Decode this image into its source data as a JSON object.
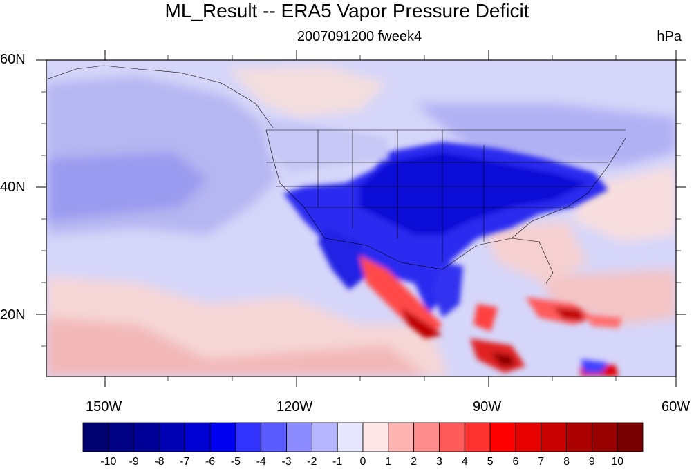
{
  "title": "ML_Result -- ERA5 Vapor Pressure Deficit",
  "subtitle": "2007091200 fweek4",
  "units": "hPa",
  "lat_labels": [
    "60N",
    "40N",
    "20N"
  ],
  "lon_labels": [
    "150W",
    "120W",
    "90W",
    "60W"
  ],
  "colorbar": {
    "ticks": [
      "-10",
      "-9",
      "-8",
      "-7",
      "-6",
      "-5",
      "-4",
      "-3",
      "-2",
      "-1",
      "0",
      "1",
      "2",
      "3",
      "4",
      "5",
      "6",
      "7",
      "8",
      "9",
      "10"
    ],
    "colors": [
      "#00006e",
      "#000082",
      "#000096",
      "#0000b4",
      "#0000d2",
      "#0000f0",
      "#3232ff",
      "#5a5aff",
      "#8c8cff",
      "#b4b4ff",
      "#e6e6ff",
      "#ffe6e6",
      "#ffb4b4",
      "#ff8c8c",
      "#ff5a5a",
      "#ff3232",
      "#ff0000",
      "#e60000",
      "#c80000",
      "#aa0000",
      "#960000",
      "#780000"
    ]
  },
  "map": {
    "lat_range": [
      10,
      60
    ],
    "lon_range": [
      -160,
      -60
    ]
  }
}
